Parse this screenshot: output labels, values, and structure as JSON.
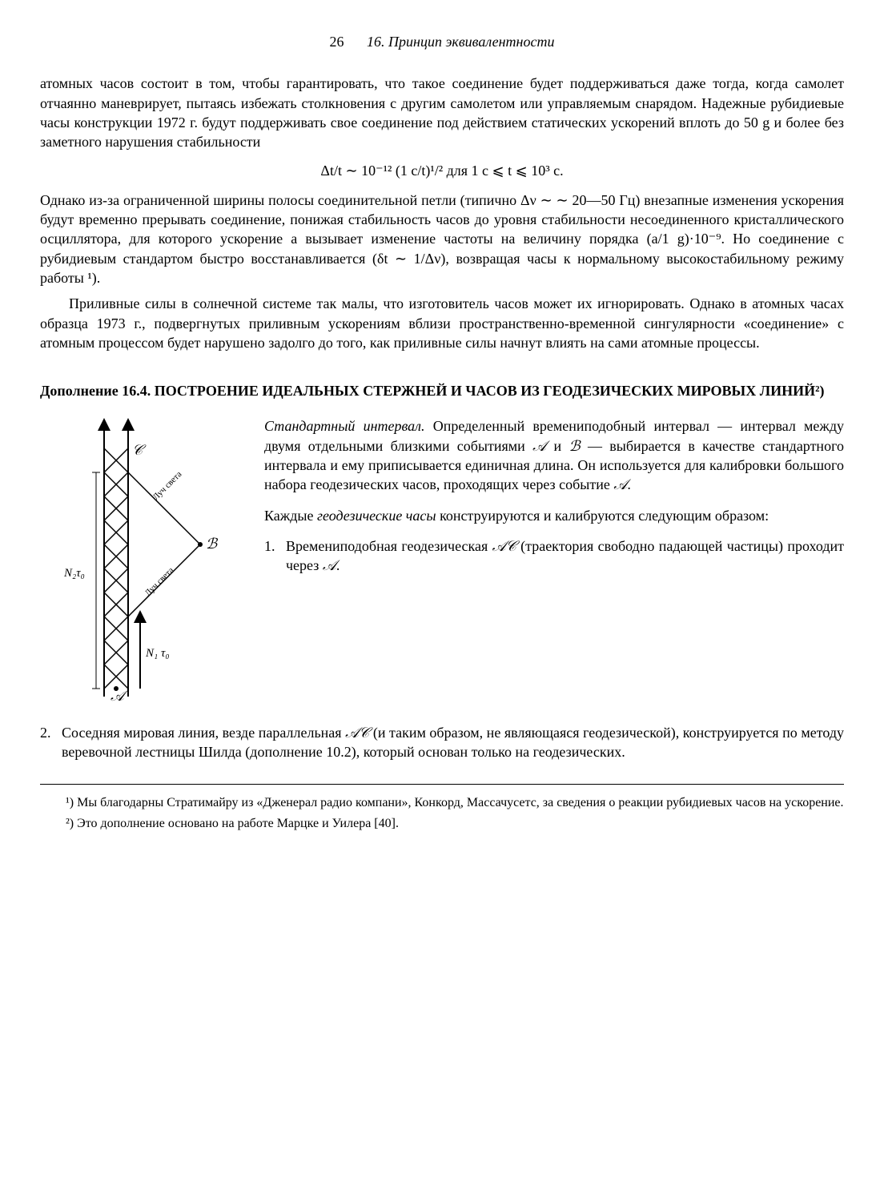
{
  "header": {
    "page_number": "26",
    "chapter": "16. Принцип эквивалентности"
  },
  "para1": "атомных часов состоит в том, чтобы гарантировать, что такое соединение будет поддерживаться даже тогда, когда самолет отчаянно маневрирует, пытаясь избежать столкновения с другим самолетом или управляемым снарядом. Надежные рубидиевые часы конструкции 1972 г. будут поддерживать свое соединение под действием статических ускорений вплоть до 50 g и более без заметного нарушения стабильности",
  "formula": "Δt/t ∼ 10⁻¹² (1 с/t)¹/² для 1 с ⩽ t ⩽ 10³ с.",
  "para2": "Однако из-за ограниченной ширины полосы соединительной петли (типично Δν ∼ ∼ 20—50 Гц) внезапные изменения ускорения будут временно прерывать соединение, понижая стабильность часов до уровня стабильности несоединенного кристаллического осциллятора, для которого ускорение a вызывает изменение частоты на величину порядка (a/1 g)·10⁻⁹. Но соединение с рубидиевым стандартом быстро восстанавливается (δt ∼ 1/Δν), возвращая часы к нормальному высокостабильному режиму работы ¹).",
  "para3": "Приливные силы в солнечной системе так малы, что изготовитель часов может их игнорировать. Однако в атомных часах образца 1973 г., подвергнутых приливным ускорениям вблизи пространственно-временной сингулярности «соединение» с атомным процессом будет нарушено задолго до того, как приливные силы начнут влиять на сами атомные процессы.",
  "section_title": "Дополнение 16.4. ПОСТРОЕНИЕ ИДЕАЛЬНЫХ СТЕРЖНЕЙ И ЧАСОВ ИЗ ГЕОДЕЗИЧЕСКИХ МИРОВЫХ ЛИНИЙ²)",
  "figure": {
    "label_N2t0": "N₂τ₀",
    "label_N1t0": "N₁ τ₀",
    "label_A": "𝒜",
    "label_B": "ℬ",
    "label_C": "𝒞",
    "label_light1": "Луч света",
    "label_light2": "Луч света",
    "stroke_color": "#000000",
    "bg_color": "#ffffff"
  },
  "fig_para1_html": "<span class='em'>Стандартный интервал.</span> Определенный времениподобный интервал — интервал между двумя отдельными близкими событиями <span class='script'>𝒜</span> и <span class='script'>ℬ</span> — выбирается в качестве стандартного интервала и ему приписывается единичная длина. Он используется для калибровки большого набора геодезических часов, проходящих через событие <span class='script'>𝒜</span>.",
  "fig_para2_html": "Каждые <span class='em'>геодезические часы</span> конструируются и калибруются следующим образом:",
  "list_item1_html": "Времениподобная геодезическая <span class='script'>𝒜𝒞</span> (траектория свободно падающей частицы) проходит через <span class='script'>𝒜</span>.",
  "list_item2_html": "Соседняя мировая линия, везде параллельная <span class='script'>𝒜𝒞</span> (и таким образом, не являющаяся геодезической), конструируется по методу веревочной лестницы Шилда (дополнение 10.2), который основан только на геодезических.",
  "footnote1": "¹) Мы благодарны Стратимайру из «Дженерал радио компани», Конкорд, Массачусетс, за сведения о реакции рубидиевых часов на ускорение.",
  "footnote2": "²) Это дополнение основано на работе Марцке и Уилера [40].",
  "list_numbers": {
    "n1": "1.",
    "n2": "2."
  }
}
